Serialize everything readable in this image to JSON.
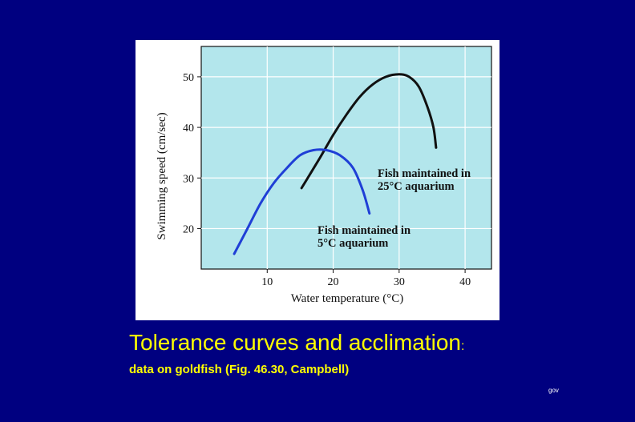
{
  "slide": {
    "title": "Tolerance curves and acclimation",
    "title_colon": ":",
    "subtitle": "data on goldfish (Fig. 46.30, Campbell)",
    "footer": "gov"
  },
  "colors": {
    "background": "#000080",
    "text": "#ffff00",
    "figure_bg": "#ffffff",
    "plot_bg": "#b3e6ec",
    "series_25C": "#111111",
    "series_5C": "#1f3fd6"
  },
  "chart_data": {
    "type": "line",
    "title": "",
    "xlabel": "Water temperature (°C)",
    "ylabel": "Swimming speed (cm/sec)",
    "xlim": [
      0,
      44
    ],
    "ylim": [
      12,
      56
    ],
    "xticks": [
      10,
      20,
      30,
      40
    ],
    "yticks": [
      20,
      30,
      40,
      50
    ],
    "grid": true,
    "series": [
      {
        "key": "s25",
        "label_lines": [
          "Fish maintained in",
          "25°C aquarium"
        ],
        "color": "#111111",
        "points": [
          [
            15.2,
            28
          ],
          [
            18,
            34
          ],
          [
            20,
            38.5
          ],
          [
            22,
            42.5
          ],
          [
            24,
            46
          ],
          [
            26,
            48.5
          ],
          [
            28,
            50
          ],
          [
            30,
            50.5
          ],
          [
            31.5,
            50
          ],
          [
            33,
            48
          ],
          [
            34.3,
            44
          ],
          [
            35.2,
            40
          ],
          [
            35.6,
            36
          ]
        ]
      },
      {
        "key": "s5",
        "label_lines": [
          "Fish maintained in",
          "5°C aquarium"
        ],
        "color": "#1f3fd6",
        "points": [
          [
            5,
            15
          ],
          [
            7,
            20
          ],
          [
            9,
            25
          ],
          [
            11,
            29
          ],
          [
            13,
            32
          ],
          [
            15,
            34.5
          ],
          [
            17,
            35.5
          ],
          [
            19,
            35.5
          ],
          [
            21,
            34.5
          ],
          [
            23,
            32
          ],
          [
            24.5,
            27.5
          ],
          [
            25.5,
            23
          ]
        ]
      }
    ]
  }
}
